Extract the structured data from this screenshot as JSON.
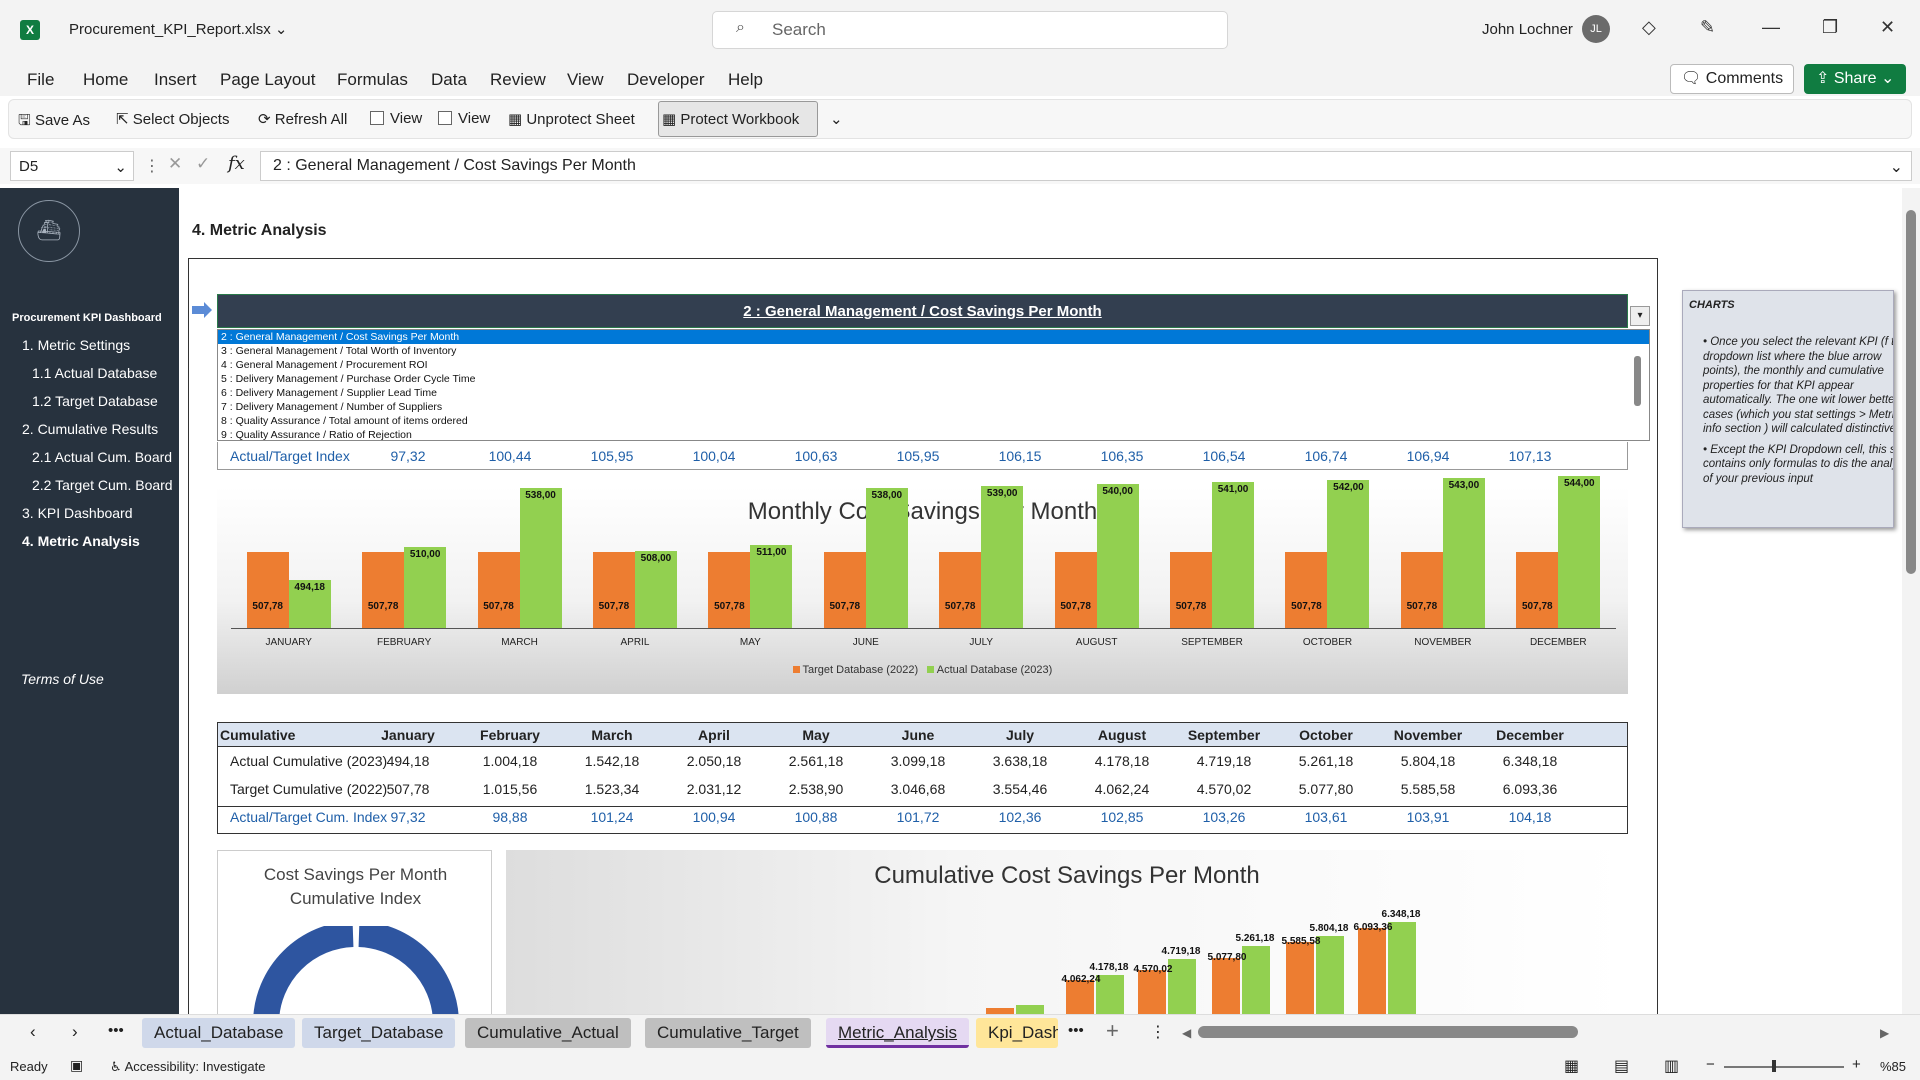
{
  "window": {
    "filename": "Procurement_KPI_Report.xlsx",
    "search_placeholder": "Search",
    "user": "John Lochner",
    "initials": "JL"
  },
  "menu": [
    "File",
    "Home",
    "Insert",
    "Page Layout",
    "Formulas",
    "Data",
    "Review",
    "View",
    "Developer",
    "Help"
  ],
  "actions": {
    "comments": "Comments",
    "share": "Share"
  },
  "toolbar": {
    "save_as": "Save As",
    "select_objects": "Select Objects",
    "refresh_all": "Refresh All",
    "view1": "View",
    "view2": "View",
    "unprotect_sheet": "Unprotect Sheet",
    "protect_workbook": "Protect Workbook"
  },
  "formula_bar": {
    "cell_ref": "D5",
    "formula": "2 : General Management / Cost Savings Per Month"
  },
  "sidebar": {
    "title": "Procurement KPI Dashboard",
    "items": [
      "1. Metric Settings",
      "1.1 Actual Database",
      "1.2 Target Database",
      "2. Cumulative Results",
      "2.1 Actual Cum. Board",
      "2.2 Target Cum. Board",
      "3. KPI Dashboard",
      "4. Metric Analysis"
    ],
    "terms": "Terms of Use"
  },
  "page_title": "4. Metric Analysis",
  "dropdown": {
    "selected": "2 : General Management / Cost Savings Per Month",
    "options": [
      "2 : General Management / Cost Savings Per Month",
      "3 : General Management / Total Worth of Inventory",
      "4 : General Management / Procurement ROI",
      "5 : Delivery Management / Purchase Order Cycle Time",
      "6 : Delivery Management / Supplier Lead Time",
      "7 : Delivery Management / Number of Suppliers",
      "8 : Quality Assurance / Total amount of items ordered",
      "9 : Quality Assurance / Ratio of Rejection"
    ]
  },
  "index_row": {
    "label": "Actual/Target Index",
    "values": [
      "97,32",
      "100,44",
      "105,95",
      "100,04",
      "100,63",
      "105,95",
      "106,15",
      "106,35",
      "106,54",
      "106,74",
      "106,94",
      "107,13"
    ]
  },
  "chart_data": [
    {
      "type": "bar",
      "title": "Monthly Cost Savings Per Month",
      "categories": [
        "JANUARY",
        "FEBRUARY",
        "MARCH",
        "APRIL",
        "MAY",
        "JUNE",
        "JULY",
        "AUGUST",
        "SEPTEMBER",
        "OCTOBER",
        "NOVEMBER",
        "DECEMBER"
      ],
      "series": [
        {
          "name": "Target Database (2022)",
          "color": "#ed7d31",
          "values": [
            507.78,
            507.78,
            507.78,
            507.78,
            507.78,
            507.78,
            507.78,
            507.78,
            507.78,
            507.78,
            507.78,
            507.78
          ],
          "labels": [
            "507,78",
            "507,78",
            "507,78",
            "507,78",
            "507,78",
            "507,78",
            "507,78",
            "507,78",
            "507,78",
            "507,78",
            "507,78",
            "507,78"
          ]
        },
        {
          "name": "Actual Database (2023)",
          "color": "#92d050",
          "values": [
            494.18,
            510.0,
            538.0,
            508.0,
            511.0,
            538.0,
            539.0,
            540.0,
            541.0,
            542.0,
            543.0,
            544.0
          ],
          "labels": [
            "494,18",
            "510,00",
            "538,00",
            "508,00",
            "511,00",
            "538,00",
            "539,00",
            "540,00",
            "541,00",
            "542,00",
            "543,00",
            "544,00"
          ]
        }
      ],
      "legend": "bottom"
    },
    {
      "type": "bar",
      "title": "Cumulative Cost Savings Per Month",
      "series": [
        {
          "name": "Target Cumulative (2022)",
          "color": "#ed7d31",
          "visible_labels": [
            "4.062,24",
            "4.570,02",
            "5.077,80",
            "5.585,58",
            "6.093,36"
          ]
        },
        {
          "name": "Actual Cumulative (2023)",
          "color": "#92d050",
          "visible_labels": [
            "4.178,18",
            "4.719,18",
            "5.261,18",
            "5.804,18",
            "6.348,18"
          ]
        }
      ]
    }
  ],
  "cum_table": {
    "header": [
      "Cumulative",
      "January",
      "February",
      "March",
      "April",
      "May",
      "June",
      "July",
      "August",
      "September",
      "October",
      "November",
      "December"
    ],
    "rows": [
      [
        "Actual Cumulative (2023)",
        "494,18",
        "1.004,18",
        "1.542,18",
        "2.050,18",
        "2.561,18",
        "3.099,18",
        "3.638,18",
        "4.178,18",
        "4.719,18",
        "5.261,18",
        "5.804,18",
        "6.348,18"
      ],
      [
        "Target Cumulative (2022)",
        "507,78",
        "1.015,56",
        "1.523,34",
        "2.031,12",
        "2.538,90",
        "3.046,68",
        "3.554,46",
        "4.062,24",
        "4.570,02",
        "5.077,80",
        "5.585,58",
        "6.093,36"
      ],
      [
        "Actual/Target Cum. Index",
        "97,32",
        "98,88",
        "101,24",
        "100,94",
        "100,88",
        "101,72",
        "102,36",
        "102,85",
        "103,26",
        "103,61",
        "103,91",
        "104,18"
      ]
    ]
  },
  "donut": {
    "title": "Cost Savings Per Month Cumulative Index"
  },
  "note": {
    "title": "CHARTS",
    "bullets": [
      "Once you select the relevant KPI (f the dropdown list where the blue arrow points), the monthly and cumulative properties for that KPI appear automatically. The one wit lower better cases (which you stat settings > Metric info section ) will calculated distinctively.",
      "Except the KPI Dropdown cell, this sheet contains only formulas to dis the analysis of your previous input"
    ]
  },
  "sheet_tabs": [
    "Actual_Database",
    "Target_Database",
    "Cumulative_Actual",
    "Cumulative_Target",
    "Metric_Analysis",
    "Kpi_Dash"
  ],
  "status": {
    "ready": "Ready",
    "accessibility": "Accessibility: Investigate",
    "zoom": "%85"
  }
}
